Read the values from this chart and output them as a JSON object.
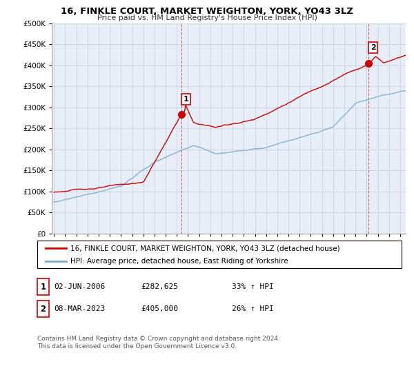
{
  "title": "16, FINKLE COURT, MARKET WEIGHTON, YORK, YO43 3LZ",
  "subtitle": "Price paid vs. HM Land Registry's House Price Index (HPI)",
  "legend_line1": "16, FINKLE COURT, MARKET WEIGHTON, YORK, YO43 3LZ (detached house)",
  "legend_line2": "HPI: Average price, detached house, East Riding of Yorkshire",
  "sale1_date": "02-JUN-2006",
  "sale1_price": "£282,625",
  "sale1_hpi": "33% ↑ HPI",
  "sale2_date": "08-MAR-2023",
  "sale2_price": "£405,000",
  "sale2_hpi": "26% ↑ HPI",
  "footer": "Contains HM Land Registry data © Crown copyright and database right 2024.\nThis data is licensed under the Open Government Licence v3.0.",
  "red_color": "#cc0000",
  "blue_color": "#7aaad0",
  "bg_color": "#e8eef8",
  "grid_color": "#c8cfe0",
  "sale1_x": 2006.42,
  "sale1_y": 282625,
  "sale2_x": 2023.19,
  "sale2_y": 405000,
  "ylim": [
    0,
    500000
  ],
  "xlim": [
    1994.8,
    2026.5
  ]
}
